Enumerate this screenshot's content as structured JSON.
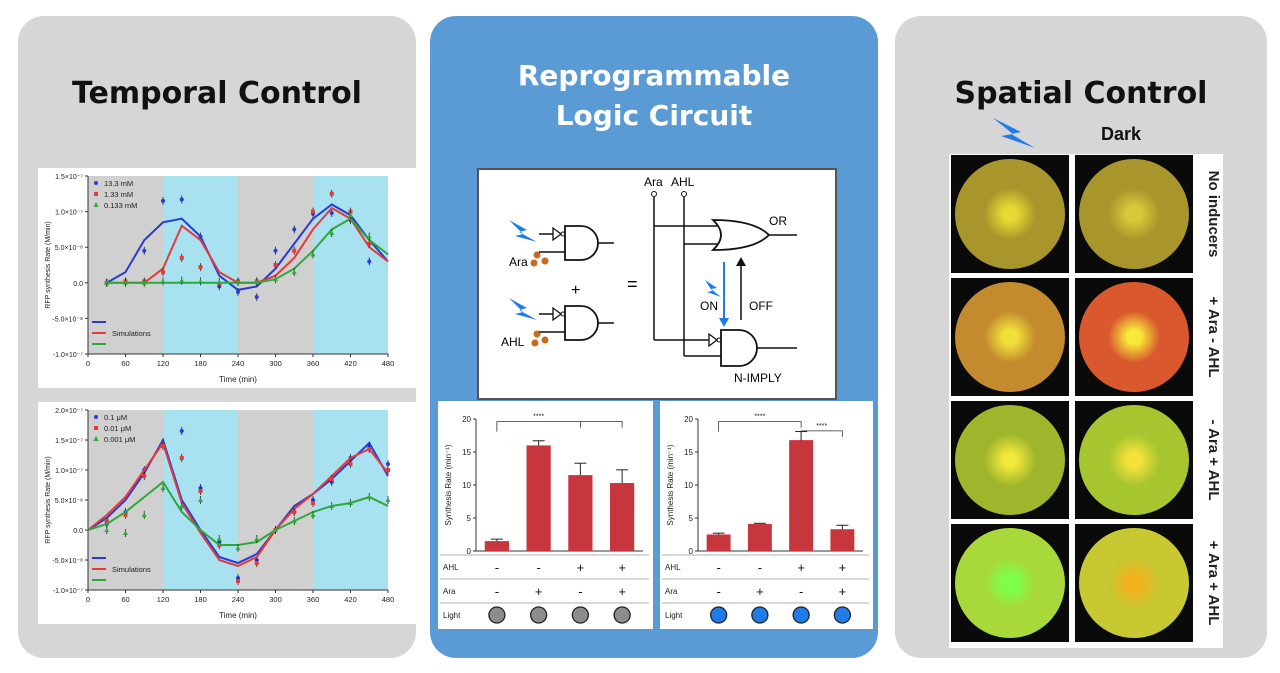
{
  "panels": {
    "temporal": {
      "title": "Temporal Control"
    },
    "logic": {
      "title_line1": "Reprogrammable",
      "title_line2": "Logic Circuit"
    },
    "spatial": {
      "title": "Spatial Control",
      "light_icon": "lightning-icon",
      "dark_label": "Dark"
    }
  },
  "temporal_charts": [
    {
      "type": "line",
      "xlabel": "Time (min)",
      "ylabel": "RFP synthesis Rate (M/min)",
      "x_ticks": [
        0,
        60,
        120,
        180,
        240,
        300,
        360,
        420,
        480
      ],
      "y_ticks": [
        "1.5×10⁻⁷",
        "1.0×10⁻⁷",
        "5.0×10⁻⁸",
        "0.0",
        "-5.0×10⁻⁸",
        "-1.0×10⁻⁷"
      ],
      "ylim": [
        -1e-07,
        1.5e-07
      ],
      "xlim": [
        0,
        480
      ],
      "light_intervals": [
        [
          120,
          240
        ],
        [
          360,
          480
        ]
      ],
      "legend": [
        "13.3 mM",
        "1.33 mM",
        "0.133 mM"
      ],
      "sim_label": "Simulations",
      "series": [
        {
          "name": "13.3 mM",
          "color": "#2a3bd4",
          "points": [
            [
              30,
              0
            ],
            [
              60,
              1e-09
            ],
            [
              90,
              4.5e-08
            ],
            [
              120,
              1.15e-07
            ],
            [
              150,
              1.17e-07
            ],
            [
              180,
              6.5e-08
            ],
            [
              210,
              -5e-09
            ],
            [
              240,
              -1.3e-08
            ],
            [
              270,
              -2e-08
            ],
            [
              300,
              4.5e-08
            ],
            [
              330,
              7.5e-08
            ],
            [
              360,
              9.7e-08
            ],
            [
              390,
              9.8e-08
            ],
            [
              420,
              8.8e-08
            ],
            [
              450,
              3e-08
            ]
          ],
          "sim": [
            [
              30,
              0
            ],
            [
              60,
              1.5e-08
            ],
            [
              90,
              6e-08
            ],
            [
              120,
              8.5e-08
            ],
            [
              150,
              9e-08
            ],
            [
              180,
              6.5e-08
            ],
            [
              210,
              1e-08
            ],
            [
              240,
              -1e-08
            ],
            [
              270,
              -5e-09
            ],
            [
              300,
              2e-08
            ],
            [
              330,
              5.5e-08
            ],
            [
              360,
              9e-08
            ],
            [
              390,
              1.1e-07
            ],
            [
              420,
              9.5e-08
            ],
            [
              450,
              6e-08
            ],
            [
              480,
              3e-08
            ]
          ]
        },
        {
          "name": "1.33 mM",
          "color": "#e23b3b",
          "points": [
            [
              30,
              0
            ],
            [
              60,
              2e-09
            ],
            [
              90,
              2e-09
            ],
            [
              120,
              1.5e-08
            ],
            [
              150,
              3.5e-08
            ],
            [
              180,
              2.2e-08
            ],
            [
              210,
              -2e-09
            ],
            [
              240,
              2e-09
            ],
            [
              270,
              2e-09
            ],
            [
              300,
              2.5e-08
            ],
            [
              330,
              4.5e-08
            ],
            [
              360,
              1e-07
            ],
            [
              390,
              1.25e-07
            ],
            [
              420,
              1e-07
            ],
            [
              450,
              5.5e-08
            ]
          ],
          "sim": [
            [
              30,
              0
            ],
            [
              60,
              0
            ],
            [
              90,
              0
            ],
            [
              120,
              2e-08
            ],
            [
              150,
              8e-08
            ],
            [
              180,
              6e-08
            ],
            [
              210,
              1.5e-08
            ],
            [
              240,
              0
            ],
            [
              270,
              0
            ],
            [
              300,
              1e-08
            ],
            [
              330,
              3.5e-08
            ],
            [
              360,
              7.5e-08
            ],
            [
              390,
              1.05e-07
            ],
            [
              420,
              9e-08
            ],
            [
              450,
              5e-08
            ],
            [
              480,
              3e-08
            ]
          ]
        },
        {
          "name": "0.133 mM",
          "color": "#2fa83a",
          "points": [
            [
              30,
              0
            ],
            [
              60,
              0
            ],
            [
              90,
              0
            ],
            [
              120,
              2e-09
            ],
            [
              150,
              3e-09
            ],
            [
              180,
              2e-09
            ],
            [
              210,
              1e-09
            ],
            [
              240,
              1e-09
            ],
            [
              270,
              1e-09
            ],
            [
              300,
              5e-09
            ],
            [
              330,
              1.5e-08
            ],
            [
              360,
              4e-08
            ],
            [
              390,
              7e-08
            ],
            [
              420,
              9.5e-08
            ],
            [
              450,
              6.5e-08
            ]
          ],
          "sim": [
            [
              30,
              0
            ],
            [
              60,
              0
            ],
            [
              90,
              0
            ],
            [
              120,
              0
            ],
            [
              150,
              0
            ],
            [
              180,
              0
            ],
            [
              210,
              0
            ],
            [
              240,
              0
            ],
            [
              270,
              0
            ],
            [
              300,
              5e-09
            ],
            [
              330,
              2e-08
            ],
            [
              360,
              4.5e-08
            ],
            [
              390,
              7.5e-08
            ],
            [
              420,
              9e-08
            ],
            [
              450,
              6e-08
            ],
            [
              480,
              4e-08
            ]
          ]
        }
      ]
    },
    {
      "type": "line",
      "xlabel": "Time (min)",
      "ylabel": "RFP synthesis Rate (M/min)",
      "x_ticks": [
        0,
        60,
        120,
        180,
        240,
        300,
        360,
        420,
        480
      ],
      "y_ticks": [
        "2.0×10⁻⁷",
        "1.5×10⁻⁷",
        "1.0×10⁻⁷",
        "5.0×10⁻⁸",
        "0.0",
        "-5.0×10⁻⁸",
        "-1.0×10⁻⁷"
      ],
      "ylim": [
        -1e-07,
        2e-07
      ],
      "xlim": [
        0,
        480
      ],
      "light_intervals": [
        [
          120,
          240
        ],
        [
          360,
          480
        ]
      ],
      "legend": [
        "0.1 μM",
        "0.01 μM",
        "0.001 μM"
      ],
      "sim_label": "Simulations",
      "series": [
        {
          "name": "0.1 μM",
          "color": "#2a3bd4",
          "points": [
            [
              30,
              1e-08
            ],
            [
              60,
              3e-08
            ],
            [
              90,
              1e-07
            ],
            [
              120,
              1.45e-07
            ],
            [
              150,
              1.65e-07
            ],
            [
              180,
              7e-08
            ],
            [
              210,
              -2e-08
            ],
            [
              240,
              -8e-08
            ],
            [
              270,
              -5e-08
            ],
            [
              300,
              0
            ],
            [
              330,
              3e-08
            ],
            [
              360,
              5e-08
            ],
            [
              390,
              8e-08
            ],
            [
              420,
              1.2e-07
            ],
            [
              450,
              1.4e-07
            ],
            [
              480,
              1.1e-07
            ]
          ],
          "sim": [
            [
              0,
              0
            ],
            [
              30,
              2e-08
            ],
            [
              60,
              5e-08
            ],
            [
              90,
              9.5e-08
            ],
            [
              120,
              1.5e-07
            ],
            [
              150,
              5e-08
            ],
            [
              180,
              0
            ],
            [
              210,
              -4.5e-08
            ],
            [
              240,
              -5.5e-08
            ],
            [
              270,
              -4e-08
            ],
            [
              300,
              0
            ],
            [
              330,
              4e-08
            ],
            [
              360,
              6e-08
            ],
            [
              390,
              8.5e-08
            ],
            [
              420,
              1.15e-07
            ],
            [
              450,
              1.45e-07
            ],
            [
              480,
              9e-08
            ]
          ]
        },
        {
          "name": "0.01 μM",
          "color": "#e23b3b",
          "points": [
            [
              30,
              1.5e-08
            ],
            [
              60,
              2.5e-08
            ],
            [
              90,
              9e-08
            ],
            [
              120,
              1.4e-07
            ],
            [
              150,
              1.2e-07
            ],
            [
              180,
              6.5e-08
            ],
            [
              210,
              -2.5e-08
            ],
            [
              240,
              -8.5e-08
            ],
            [
              270,
              -5.5e-08
            ],
            [
              300,
              0
            ],
            [
              330,
              3e-08
            ],
            [
              360,
              4.5e-08
            ],
            [
              390,
              8.5e-08
            ],
            [
              420,
              1.1e-07
            ],
            [
              450,
              1.35e-07
            ],
            [
              480,
              1e-07
            ]
          ],
          "sim": [
            [
              0,
              0
            ],
            [
              30,
              2.5e-08
            ],
            [
              60,
              5.5e-08
            ],
            [
              90,
              1e-07
            ],
            [
              120,
              1.45e-07
            ],
            [
              150,
              4.5e-08
            ],
            [
              180,
              -5e-09
            ],
            [
              210,
              -5e-08
            ],
            [
              240,
              -6e-08
            ],
            [
              270,
              -4.5e-08
            ],
            [
              300,
              0
            ],
            [
              330,
              3.5e-08
            ],
            [
              360,
              6e-08
            ],
            [
              390,
              9e-08
            ],
            [
              420,
              1.2e-07
            ],
            [
              450,
              1.35e-07
            ],
            [
              480,
              9.5e-08
            ]
          ]
        },
        {
          "name": "0.001 μM",
          "color": "#2fa83a",
          "points": [
            [
              30,
              0
            ],
            [
              60,
              -5e-09
            ],
            [
              90,
              2.5e-08
            ],
            [
              120,
              7e-08
            ],
            [
              150,
              4e-08
            ],
            [
              180,
              5e-08
            ],
            [
              210,
              -1.5e-08
            ],
            [
              240,
              -3e-08
            ],
            [
              270,
              -1.5e-08
            ],
            [
              300,
              0
            ],
            [
              330,
              1.5e-08
            ],
            [
              360,
              2.5e-08
            ],
            [
              390,
              4e-08
            ],
            [
              420,
              4.5e-08
            ],
            [
              450,
              5.5e-08
            ],
            [
              480,
              5e-08
            ]
          ],
          "sim": [
            [
              0,
              0
            ],
            [
              30,
              1e-08
            ],
            [
              60,
              3e-08
            ],
            [
              90,
              5.5e-08
            ],
            [
              120,
              8e-08
            ],
            [
              150,
              3e-08
            ],
            [
              180,
              0
            ],
            [
              210,
              -2.5e-08
            ],
            [
              240,
              -2.5e-08
            ],
            [
              270,
              -2e-08
            ],
            [
              300,
              0
            ],
            [
              330,
              1.5e-08
            ],
            [
              360,
              3e-08
            ],
            [
              390,
              4e-08
            ],
            [
              420,
              4.5e-08
            ],
            [
              450,
              5.5e-08
            ],
            [
              480,
              4e-08
            ]
          ]
        }
      ]
    }
  ],
  "circuit": {
    "ara_label": "Ara",
    "ahl_label": "AHL",
    "plus": "+",
    "equals": "=",
    "or_label": "OR",
    "nimply_label": "N-IMPLY",
    "on_label": "ON",
    "off_label": "OFF"
  },
  "chart_data": [
    {
      "type": "bar",
      "ylabel": "Synthesis Rate (min⁻¹)",
      "ylim": [
        0,
        20
      ],
      "y_ticks": [
        0,
        5,
        10,
        15,
        20
      ],
      "values": [
        1.5,
        16.0,
        11.5,
        10.3
      ],
      "errors": [
        0.3,
        0.7,
        1.8,
        2.0
      ],
      "bar_color": "#c8363d",
      "significance": "****",
      "rows": {
        "ahl_label": "AHL",
        "ara_label": "Ara",
        "light_label": "Light",
        "ahl": [
          "-",
          "-",
          "+",
          "+"
        ],
        "ara": [
          "-",
          "+",
          "-",
          "+"
        ]
      },
      "light_color": "#8c8c8c"
    },
    {
      "type": "bar",
      "ylabel": "Synthesis Rate (min⁻¹)",
      "ylim": [
        0,
        20
      ],
      "y_ticks": [
        0,
        5,
        10,
        15,
        20
      ],
      "values": [
        2.5,
        4.1,
        16.8,
        3.3
      ],
      "errors": [
        0.2,
        0.1,
        1.3,
        0.6
      ],
      "bar_color": "#c8363d",
      "significance": "****",
      "significance_2": "****",
      "rows": {
        "ahl_label": "AHL",
        "ara_label": "Ara",
        "light_label": "Light",
        "ahl": [
          "-",
          "-",
          "+",
          "+"
        ],
        "ara": [
          "-",
          "+",
          "-",
          "+"
        ]
      },
      "light_color": "#1f7be8"
    }
  ],
  "spatial_rows": [
    {
      "label": "No inducers",
      "light_bg": "#a8962c",
      "light_spot": "#e8d832",
      "dark_bg": "#a8962c",
      "dark_spot": "#d9c93a"
    },
    {
      "label": "+ Ara - AHL",
      "light_bg": "#c38a2e",
      "light_spot": "#f0e13a",
      "dark_bg": "#d9582e",
      "dark_spot": "#f7e83a"
    },
    {
      "label": "- Ara + AHL",
      "light_bg": "#9fb62c",
      "light_spot": "#f0e83a",
      "dark_bg": "#a6c52f",
      "dark_spot": "#f3e23a"
    },
    {
      "label": "+ Ara + AHL",
      "light_bg": "#a8d83a",
      "light_spot": "#7dff4a",
      "dark_bg": "#c7c832",
      "dark_spot": "#f2b21e"
    }
  ]
}
